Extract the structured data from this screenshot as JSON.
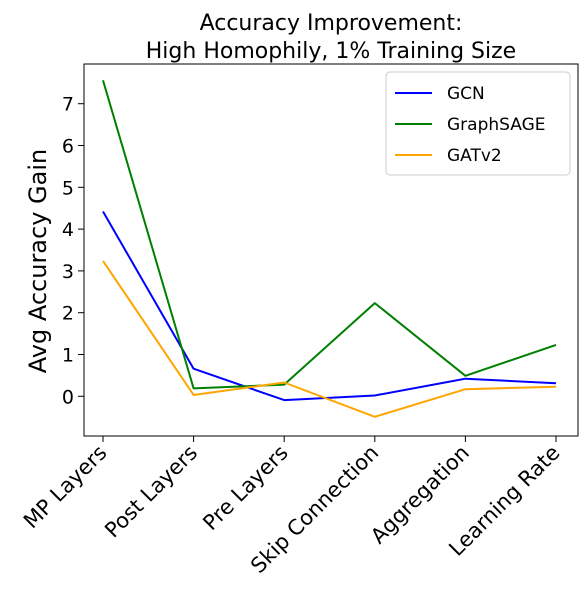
{
  "chart_data": {
    "type": "line",
    "title_line1": "Accuracy Improvement:",
    "title_line2": "High Homophily, 1% Training Size",
    "xlabel": "",
    "ylabel": "Avg Accuracy Gain",
    "categories": [
      "MP Layers",
      "Post Layers",
      "Pre Layers",
      "Skip Connection",
      "Aggregation",
      "Learning Rate"
    ],
    "ylim": [
      -0.95,
      7.95
    ],
    "yticks": [
      0,
      1,
      2,
      3,
      4,
      5,
      6,
      7
    ],
    "grid": false,
    "legend_position": "top-right",
    "series": [
      {
        "name": "GCN",
        "color": "#0000ff",
        "values": [
          4.42,
          0.66,
          -0.09,
          0.02,
          0.42,
          0.31
        ]
      },
      {
        "name": "GraphSAGE",
        "color": "#008000",
        "values": [
          7.56,
          0.19,
          0.28,
          2.23,
          0.49,
          1.23
        ]
      },
      {
        "name": "GATv2",
        "color": "#ffa500",
        "values": [
          3.24,
          0.03,
          0.33,
          -0.49,
          0.17,
          0.23
        ]
      }
    ]
  }
}
